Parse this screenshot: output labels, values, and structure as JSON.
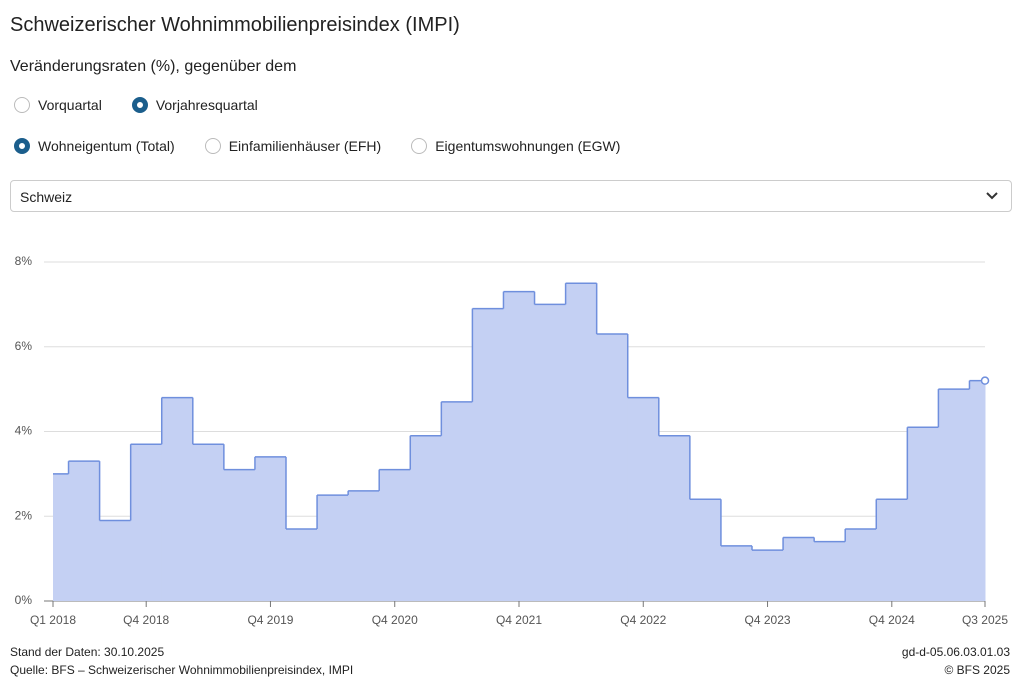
{
  "page": {
    "title": "Schweizerischer Wohnimmobilienpreisindex (IMPI)",
    "subtitle": "Veränderungsraten (%), gegenüber dem",
    "radio_groups": [
      [
        {
          "label": "Vorquartal",
          "selected": false
        },
        {
          "label": "Vorjahresquartal",
          "selected": true
        }
      ],
      [
        {
          "label": "Wohneigentum (Total)",
          "selected": true
        },
        {
          "label": "Einfamilienhäuser (EFH)",
          "selected": false
        },
        {
          "label": "Eigentumswohnungen (EGW)",
          "selected": false
        }
      ]
    ],
    "dropdown": "Schweiz",
    "footer": {
      "stand": "Stand der Daten: 30.10.2025",
      "quelle": "Quelle: BFS – Schweizerischer Wohnimmobilienpreisindex, IMPI",
      "code": "gd-d-05.06.03.01.03",
      "copyright": "© BFS 2025"
    }
  },
  "chart_data": {
    "type": "step-area",
    "categories": [
      "Q1 2018",
      null,
      null,
      "Q4 2018",
      null,
      null,
      null,
      "Q4 2019",
      null,
      null,
      null,
      "Q4 2020",
      null,
      null,
      null,
      "Q4 2021",
      null,
      null,
      null,
      "Q4 2022",
      null,
      null,
      null,
      "Q4 2023",
      null,
      null,
      null,
      "Q4 2024",
      null,
      null,
      "Q3 2025"
    ],
    "values": [
      3.0,
      3.3,
      1.9,
      3.7,
      4.8,
      3.7,
      3.1,
      3.4,
      1.7,
      2.5,
      2.6,
      3.1,
      3.9,
      4.7,
      6.9,
      7.3,
      7.0,
      7.5,
      6.3,
      4.8,
      3.9,
      2.4,
      1.3,
      1.2,
      1.5,
      1.4,
      1.7,
      2.4,
      4.1,
      5.0,
      5.2
    ],
    "color": "#6f8fdd",
    "fill": "#c4d0f3",
    "ylim": [
      0,
      8
    ],
    "yticks": [
      {
        "value": 0,
        "label": "0%"
      },
      {
        "value": 2,
        "label": "2%"
      },
      {
        "value": 4,
        "label": "4%"
      },
      {
        "value": 6,
        "label": "6%"
      },
      {
        "value": 8,
        "label": "8%"
      }
    ],
    "grid": true
  }
}
